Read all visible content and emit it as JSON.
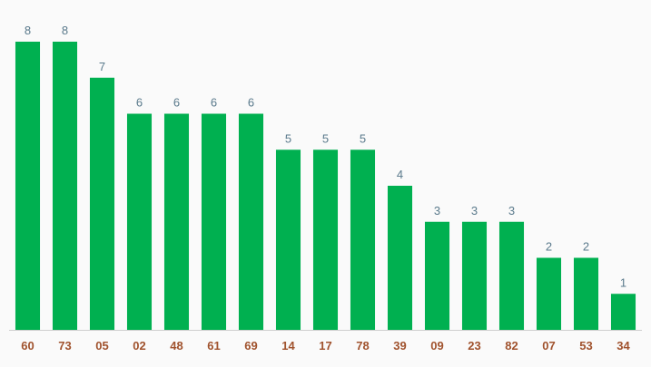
{
  "chart_data": {
    "type": "bar",
    "categories": [
      "60",
      "73",
      "05",
      "02",
      "48",
      "61",
      "69",
      "14",
      "17",
      "78",
      "39",
      "09",
      "23",
      "82",
      "07",
      "53",
      "34"
    ],
    "values": [
      8,
      8,
      7,
      6,
      6,
      6,
      6,
      5,
      5,
      5,
      4,
      3,
      3,
      3,
      2,
      2,
      1
    ],
    "title": "",
    "xlabel": "",
    "ylabel": "",
    "ylim": [
      0,
      8
    ],
    "grid": false,
    "legend": "none",
    "bar_color": "#00b050",
    "value_label_color": "#5a7a8c",
    "tick_label_color": "#a0522d"
  }
}
